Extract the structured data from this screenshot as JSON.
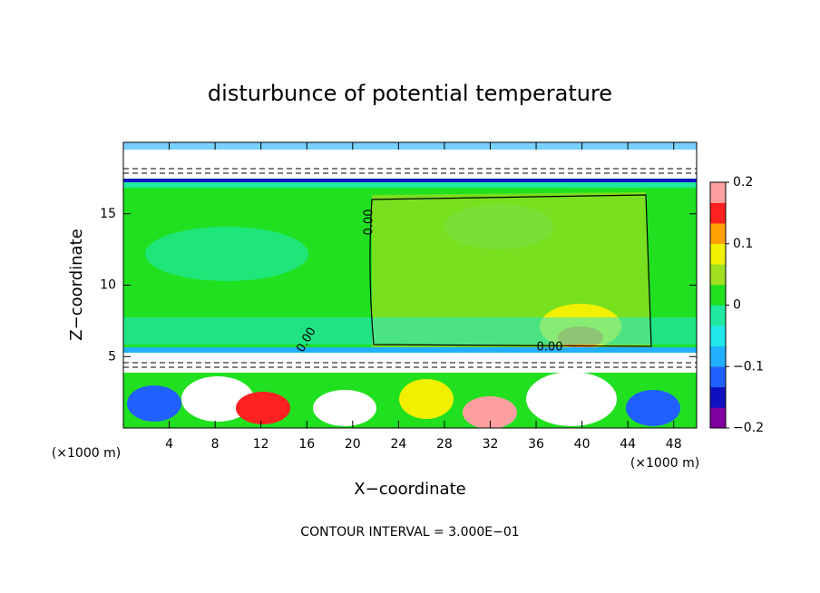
{
  "chart_data": {
    "type": "contour",
    "title": "disturbunce of potential temperature",
    "xlabel": "X−coordinate",
    "ylabel": "Z−coordinate",
    "x_unit_left": "(×1000 m)",
    "x_unit_right": "(×1000 m)",
    "annotation": "CONTOUR INTERVAL = 3.000E−01",
    "xlim": [
      0,
      50
    ],
    "xticks": [
      4,
      8,
      12,
      16,
      20,
      24,
      28,
      32,
      36,
      40,
      44,
      48
    ],
    "ylim": [
      0,
      20
    ],
    "yticks": [
      5,
      10,
      15
    ],
    "clim": [
      -0.2,
      0.2
    ],
    "cticks": [
      {
        "value": -0.2,
        "label": "−0.2"
      },
      {
        "value": -0.1,
        "label": "−0.1"
      },
      0,
      0.1,
      0.2
    ],
    "colors": [
      "#8000a0",
      "#1010c0",
      "#2060ff",
      "#20b0ff",
      "#20e8e8",
      "#20e8a0",
      "#20e020",
      "#a0e020",
      "#f0f000",
      "#ffa000",
      "#ff2020",
      "#ffa0a0"
    ],
    "contour_labels": [
      {
        "value": 0,
        "label": "0.00"
      },
      {
        "value": 0,
        "label": "0.00"
      },
      {
        "value": 0,
        "label": "0.00"
      }
    ]
  }
}
